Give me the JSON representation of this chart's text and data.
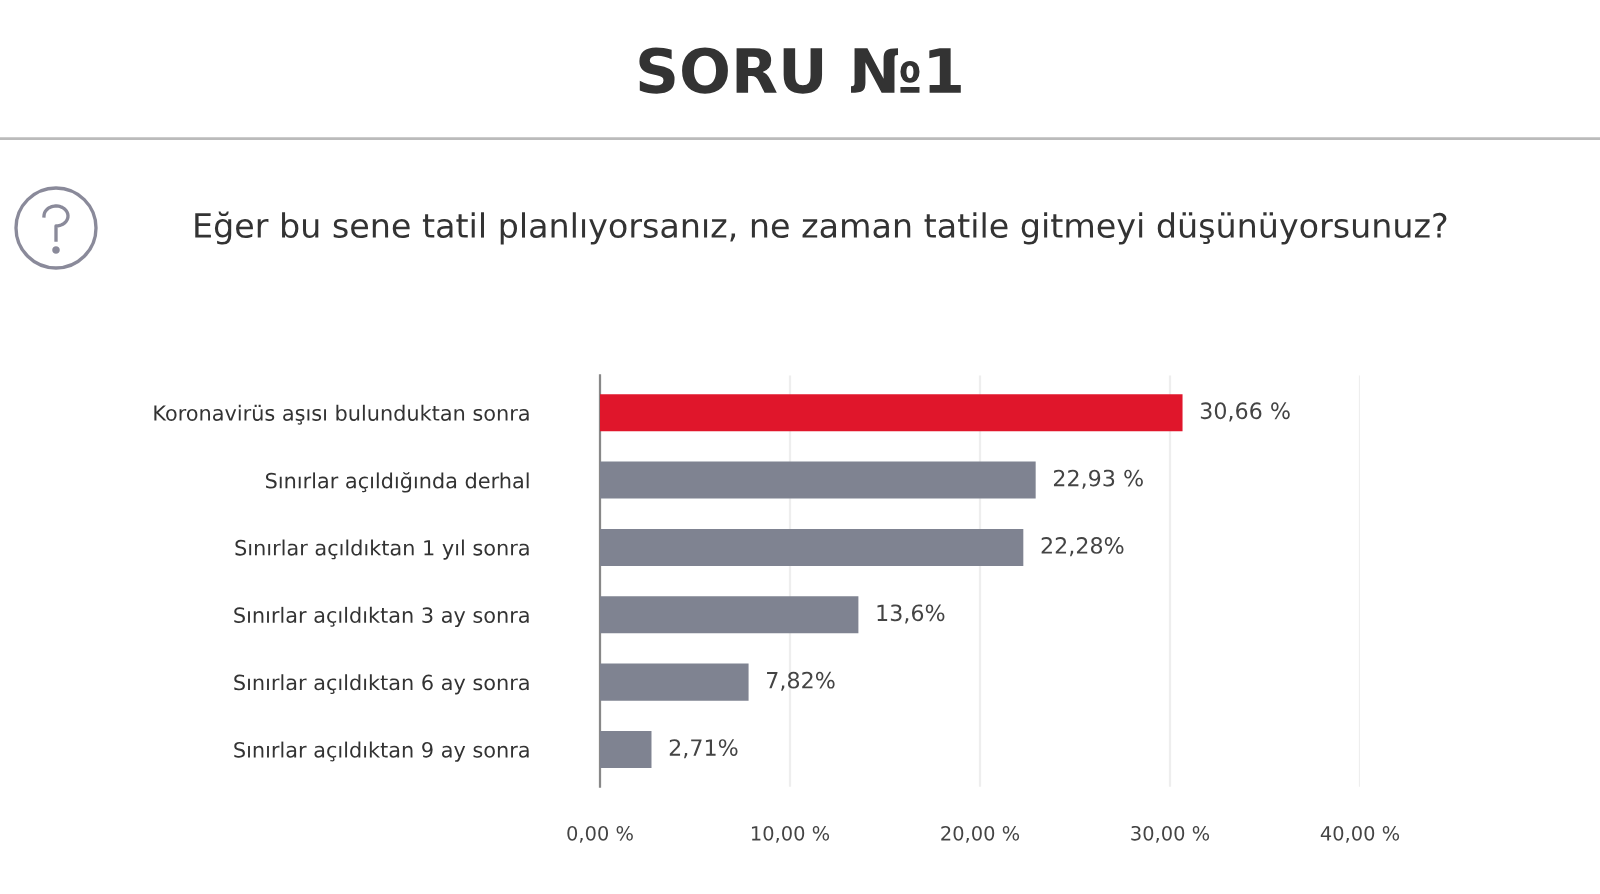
{
  "chart_data": {
    "type": "bar",
    "orientation": "horizontal",
    "title": "SORU №1",
    "subtitle": "Eğer bu sene tatil planlıyorsanız, ne zaman tatile gitmeyi düşünüyorsunuz?",
    "categories": [
      "Koronavirüs aşısı bulunduktan sonra",
      "Sınırlar açıldığında derhal",
      "Sınırlar açıldıktan 1 yıl sonra",
      "Sınırlar açıldıktan 3 ay sonra",
      "Sınırlar açıldıktan 6 ay sonra",
      "Sınırlar açıldıktan 9 ay sonra"
    ],
    "values": [
      30.66,
      22.93,
      22.28,
      13.6,
      7.82,
      2.71
    ],
    "colors": [
      "#e0162b",
      "#7f8391",
      "#7f8391",
      "#7f8391",
      "#7f8391",
      "#7f8391"
    ],
    "value_labels": [
      "30,66 %",
      "22,93 %",
      "22,28%",
      "13,6%",
      "7,82%",
      "2,71%"
    ],
    "xlim": [
      0,
      40
    ],
    "xticks": [
      {
        "value": 0,
        "label": "0,00 %"
      },
      {
        "value": 10,
        "label": "10,00 %"
      },
      {
        "value": 20,
        "label": "20,00 %"
      },
      {
        "value": 30,
        "label": "30,00 %"
      },
      {
        "value": 40,
        "label": "40,00 %"
      }
    ],
    "grid": "x",
    "legend": false
  }
}
